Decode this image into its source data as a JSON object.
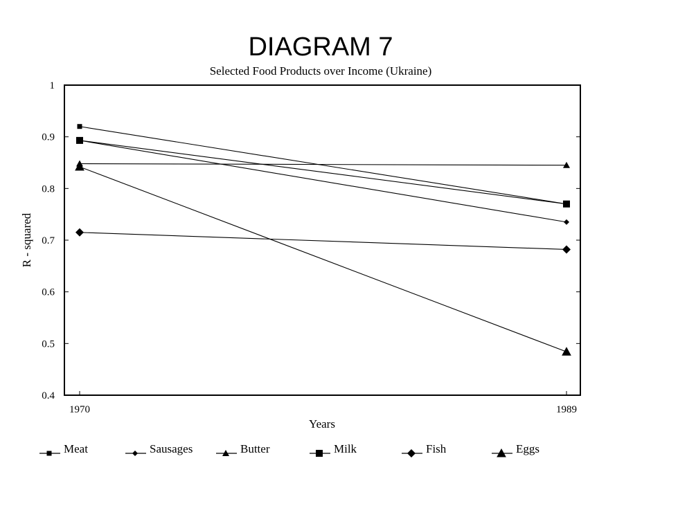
{
  "chart_data": {
    "type": "line",
    "title": "DIAGRAM 7",
    "subtitle": "Selected Food Products over Income (Ukraine)",
    "xlabel": "Years",
    "ylabel": "R - squared",
    "categories": [
      "1970",
      "1989"
    ],
    "ylim": [
      0.4,
      1
    ],
    "yticks": [
      "1",
      "0.9",
      "0.8",
      "0.7",
      "0.6",
      "0.5",
      "0.4"
    ],
    "grid": false,
    "legend_position": "bottom",
    "series": [
      {
        "name": "Meat",
        "marker": "small-square",
        "values": [
          0.92,
          0.77
        ]
      },
      {
        "name": "Sausages",
        "marker": "small-diamond",
        "values": [
          0.893,
          0.735
        ]
      },
      {
        "name": "Butter",
        "marker": "triangle",
        "values": [
          0.848,
          0.845
        ]
      },
      {
        "name": "Milk",
        "marker": "square",
        "values": [
          0.893,
          0.77
        ]
      },
      {
        "name": "Fish",
        "marker": "diamond",
        "values": [
          0.715,
          0.682
        ]
      },
      {
        "name": "Eggs",
        "marker": "triangle-outline",
        "values": [
          0.842,
          0.484
        ]
      }
    ]
  }
}
